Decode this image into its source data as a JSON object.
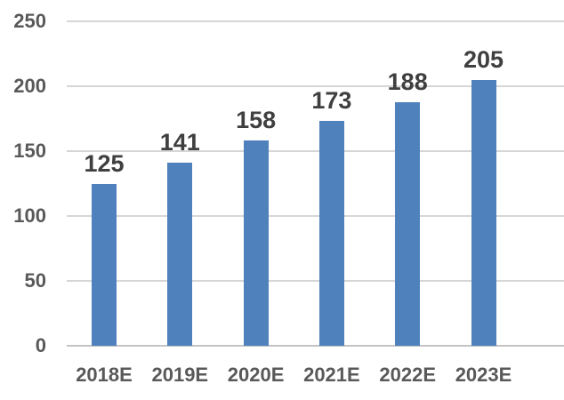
{
  "chart_data": {
    "type": "bar",
    "title": "",
    "xlabel": "",
    "ylabel": "",
    "categories": [
      "2018E",
      "2019E",
      "2020E",
      "2021E",
      "2022E",
      "2023E"
    ],
    "values": [
      125,
      141,
      158,
      173,
      188,
      205
    ],
    "data_labels": [
      "125",
      "141",
      "158",
      "173",
      "188",
      "205"
    ],
    "ytick_labels": [
      "0",
      "50",
      "100",
      "150",
      "200",
      "250"
    ],
    "yticks": [
      0,
      50,
      100,
      150,
      200,
      250
    ],
    "ylim": [
      0,
      250
    ],
    "grid": "horizontal",
    "legend_position": "none",
    "colors": {
      "bar_fill": "#4F81BD",
      "data_label_text": "#3F3F3F",
      "axis_tick_text": "#595959",
      "gridline": "#D6D6D6",
      "axis_line": "#C4C4C4",
      "background": "#FFFFFF"
    }
  }
}
